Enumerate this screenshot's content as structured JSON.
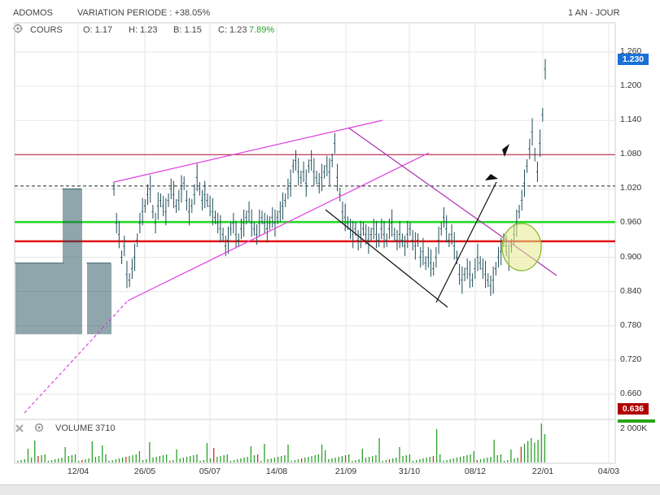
{
  "header": {
    "title": "ADOMOS",
    "variation": "VARIATION PERIODE : +38.05%",
    "period": "1 AN - JOUR"
  },
  "legend": {
    "label": "COURS",
    "open": "O: 1.17",
    "high": "H: 1.23",
    "low": "B: 1.15",
    "close": "C: 1.23",
    "change": "7.89%"
  },
  "volume": {
    "label": "VOLUME",
    "value": "3710",
    "unit": "2 000K"
  },
  "badges": {
    "last": "1.230",
    "low": "0.636"
  },
  "colors": {
    "price": "#1f4e5a",
    "support": "#e01010",
    "green_line": "#22dd22",
    "dark_red_line": "#b01030",
    "magenta": "#e040e0",
    "purple": "#b030b0",
    "badge_last": "#1a6fd8",
    "badge_low": "#b00000",
    "change_text": "#2a9d2a"
  },
  "chart_data": {
    "type": "line",
    "title": "ADOMOS",
    "ylim": [
      0.62,
      1.28
    ],
    "y_ticks": [
      "1.260",
      "1.200",
      "1.140",
      "1.080",
      "1.020",
      "0.960",
      "0.900",
      "0.840",
      "0.780",
      "0.720",
      "0.660"
    ],
    "y_tick_values": [
      1.26,
      1.2,
      1.14,
      1.08,
      1.02,
      0.96,
      0.9,
      0.84,
      0.78,
      0.72,
      0.66
    ],
    "x_ticks": [
      "12/04",
      "26/05",
      "05/07",
      "14/08",
      "21/09",
      "31/10",
      "08/12",
      "22/01",
      "04/03"
    ],
    "grid": true,
    "horizontal_levels": [
      {
        "value": 1.08,
        "style": "dark-red"
      },
      {
        "value": 1.025,
        "style": "dashed-black"
      },
      {
        "value": 0.962,
        "style": "green"
      },
      {
        "value": 0.928,
        "style": "red"
      }
    ],
    "series": [
      {
        "values": [
          {
            "seg": "a",
            "vals": [
              0.89,
              0.89,
              0.89,
              0.89,
              0.89,
              0.89,
              0.89,
              0.89,
              0.89,
              0.89,
              0.89,
              0.89,
              0.89,
              0.89,
              0.89,
              0.89,
              0.89,
              0.89,
              0.89,
              0.89,
              0.89,
              0.89,
              0.89,
              0.89,
              0.89,
              0.89,
              0.89,
              0.89,
              0.89,
              0.89
            ]
          },
          {
            "seg": "b",
            "vals": [
              1.02,
              1.02,
              1.02,
              1.02,
              1.02,
              1.02,
              1.02,
              1.02,
              1.02,
              1.02,
              1.02,
              1.02
            ]
          },
          {
            "seg": "c",
            "vals": [
              0.89,
              0.89,
              0.89,
              0.89,
              0.89,
              0.89,
              0.89,
              0.89,
              0.89,
              0.89,
              0.89,
              0.89,
              0.89,
              0.89,
              0.89
            ]
          },
          {
            "seg": "d",
            "vals": [
              1.02,
              0.96,
              0.94,
              0.9,
              0.92,
              0.87,
              0.86,
              0.88,
              0.9,
              0.93,
              0.96,
              0.98,
              0.99,
              1.01,
              1.02,
              0.98,
              0.96,
              0.99,
              1.0,
              0.99,
              0.98,
              1.0,
              1.02,
              1.01,
              0.99,
              1.0,
              1.02,
              1.03,
              1.0,
              0.98,
              0.99,
              1.01,
              1.04,
              1.02,
              1.0,
              1.01,
              1.0,
              0.99,
              0.98,
              0.97,
              0.96,
              0.95,
              0.94,
              0.92,
              0.93,
              0.95,
              0.96,
              0.94,
              0.93,
              0.95,
              0.96,
              0.97,
              0.98,
              0.96,
              0.95,
              0.94,
              0.96,
              0.97,
              0.96,
              0.95,
              0.96,
              0.97,
              0.96,
              0.97,
              0.98,
              0.99,
              1.0,
              1.02,
              1.03,
              1.06,
              1.07,
              1.05,
              1.04,
              1.05,
              1.03,
              1.06,
              1.07,
              1.05,
              1.04,
              1.03,
              1.04,
              1.05,
              1.06,
              1.05,
              1.07,
              1.1,
              1.04,
              1.01,
              0.98,
              0.97,
              0.96,
              0.95,
              0.94,
              0.95,
              0.93,
              0.94,
              0.95,
              0.94,
              0.93,
              0.94,
              0.95,
              0.94,
              0.93,
              0.95,
              0.94,
              0.93,
              0.95,
              0.96,
              0.94,
              0.93,
              0.94,
              0.93,
              0.92,
              0.94,
              0.95,
              0.93,
              0.92,
              0.93,
              0.9,
              0.91,
              0.89,
              0.9,
              0.89,
              0.88,
              0.9,
              0.93,
              0.95,
              0.97,
              0.95,
              0.93,
              0.94,
              0.92,
              0.9,
              0.87,
              0.86,
              0.87,
              0.88,
              0.87,
              0.86,
              0.88,
              0.9,
              0.89,
              0.88,
              0.87,
              0.86,
              0.85,
              0.86,
              0.88,
              0.9,
              0.91,
              0.93,
              0.92,
              0.9,
              0.92,
              0.94,
              0.96,
              0.98,
              1.0,
              1.03,
              1.06,
              1.09,
              1.12,
              1.08,
              1.05,
              1.1,
              1.15,
              1.23
            ]
          }
        ]
      }
    ],
    "volume_ylim": [
      0,
      2000
    ]
  }
}
